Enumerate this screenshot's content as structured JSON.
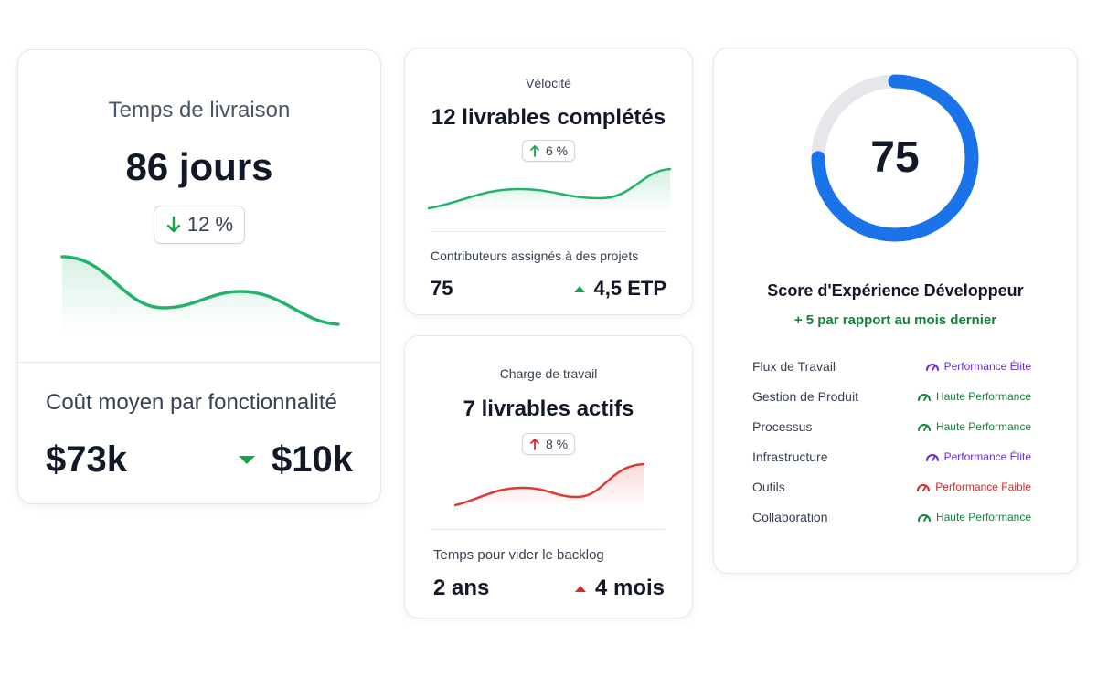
{
  "lead_time": {
    "title": "Temps de livraison",
    "value": "86 jours",
    "change": "12 %",
    "cost_title": "Coût moyen par fonctionnalité",
    "cost_value": "$73k",
    "cost_delta": "$10k"
  },
  "velocity": {
    "label": "Vélocité",
    "value": "12 livrables complétés",
    "change": "6 %",
    "contributors_label": "Contributeurs assignés à des projets",
    "contributors_value": "75",
    "contributors_delta": "4,5 ETP"
  },
  "workload": {
    "label": "Charge de travail",
    "value": "7 livrables actifs",
    "change": "8 %",
    "backlog_label": "Temps pour vider le backlog",
    "backlog_value": "2 ans",
    "backlog_delta": "4 mois"
  },
  "devex": {
    "score": "75",
    "score_fraction": 0.75,
    "title": "Score d'Expérience Développeur",
    "subtitle": "+ 5 par rapport au mois dernier",
    "ring_color": "#1a73e8",
    "items": [
      {
        "label": "Flux de Travail",
        "status": "Performance Élite",
        "color": "#6d28d9"
      },
      {
        "label": "Gestion de Produit",
        "status": "Haute Performance",
        "color": "#15803d"
      },
      {
        "label": "Processus",
        "status": "Haute Performance",
        "color": "#15803d"
      },
      {
        "label": "Infrastructure",
        "status": "Performance Élite",
        "color": "#6d28d9"
      },
      {
        "label": "Outils",
        "status": "Performance Faible",
        "color": "#dc2626"
      },
      {
        "label": "Collaboration",
        "status": "Haute Performance",
        "color": "#15803d"
      }
    ]
  },
  "colors": {
    "green": "#22b36b",
    "red": "#dc3b30",
    "up_green": "#16a34a",
    "up_red": "#dc2626"
  }
}
